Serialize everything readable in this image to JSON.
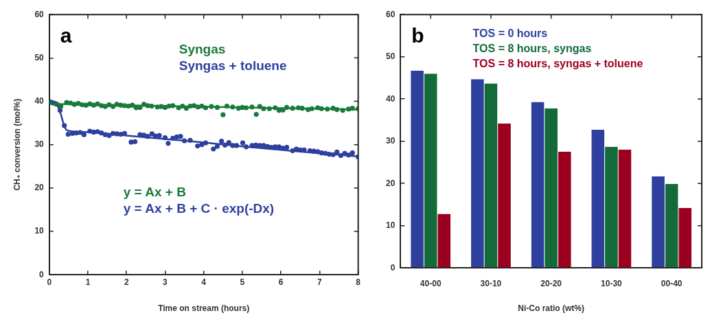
{
  "chart_data": [
    {
      "type": "scatter",
      "title": "a",
      "xlabel": "Time on stream (hours)",
      "ylabel": "CH₄ conversion (mol%)",
      "xlim": [
        0,
        8
      ],
      "xticks": [
        0,
        1,
        2,
        3,
        4,
        5,
        6,
        7,
        8
      ],
      "ylim": [
        0,
        60
      ],
      "yticks": [
        0,
        10,
        20,
        30,
        40,
        50,
        60
      ],
      "grid": false,
      "legend": "top",
      "marker": "circle",
      "annotations": [
        "y = Ax + B",
        "y = Ax + B + C · exp(-Dx)"
      ],
      "series": [
        {
          "name": "Syngas",
          "type": "scatter",
          "color": "#1a7a3c",
          "x": [
            0.02,
            0.1,
            0.2,
            0.3,
            0.45,
            0.55,
            0.65,
            0.75,
            0.85,
            0.95,
            1.05,
            1.15,
            1.25,
            1.35,
            1.45,
            1.55,
            1.65,
            1.75,
            1.85,
            1.95,
            2.05,
            2.15,
            2.25,
            2.35,
            2.45,
            2.55,
            2.65,
            2.8,
            2.9,
            3.0,
            3.1,
            3.2,
            3.35,
            3.45,
            3.55,
            3.65,
            3.75,
            3.85,
            3.95,
            4.05,
            4.2,
            4.35,
            4.5,
            4.6,
            4.75,
            4.9,
            5.0,
            5.1,
            5.25,
            5.36,
            5.45,
            5.55,
            5.7,
            5.85,
            5.95,
            6.05,
            6.15,
            6.3,
            6.45,
            6.55,
            6.7,
            6.8,
            6.95,
            7.05,
            7.2,
            7.35,
            7.45,
            7.6,
            7.75,
            7.85,
            8.0
          ],
          "values": [
            39.8,
            39.6,
            39.3,
            38.8,
            39.7,
            39.6,
            39.3,
            39.5,
            39.2,
            39.1,
            39.4,
            39.1,
            39.4,
            39.0,
            38.8,
            39.2,
            38.8,
            39.3,
            39.1,
            39.0,
            38.9,
            39.1,
            38.5,
            38.6,
            39.3,
            39.0,
            38.9,
            38.7,
            38.8,
            38.6,
            38.9,
            39.0,
            38.5,
            38.9,
            38.4,
            38.9,
            39.0,
            38.7,
            38.9,
            38.5,
            38.8,
            38.6,
            36.9,
            38.9,
            38.7,
            38.4,
            38.6,
            38.5,
            38.7,
            37.0,
            38.8,
            38.3,
            38.3,
            38.5,
            37.9,
            38.0,
            38.6,
            38.4,
            38.5,
            38.4,
            38.1,
            38.3,
            38.5,
            38.3,
            38.2,
            38.4,
            38.1,
            37.9,
            38.2,
            38.4,
            38.3
          ]
        },
        {
          "type": "line",
          "color": "#1a7a3c",
          "marker": "none",
          "x": [
            0,
            8
          ],
          "values": [
            39.4,
            38.1
          ]
        },
        {
          "name": "Syngas + toluene",
          "type": "scatter",
          "color": "#2e3f9e",
          "x": [
            0.02,
            0.08,
            0.15,
            0.28,
            0.39,
            0.49,
            0.6,
            0.7,
            0.8,
            0.9,
            1.05,
            1.15,
            1.25,
            1.35,
            1.45,
            1.55,
            1.65,
            1.75,
            1.85,
            1.95,
            2.12,
            2.22,
            2.35,
            2.45,
            2.55,
            2.66,
            2.75,
            2.85,
            3.0,
            3.08,
            3.2,
            3.3,
            3.4,
            3.5,
            3.65,
            3.84,
            3.95,
            4.05,
            4.25,
            4.35,
            4.46,
            4.55,
            4.65,
            4.75,
            4.85,
            5.01,
            5.1,
            5.25,
            5.35,
            5.45,
            5.55,
            5.65,
            5.75,
            5.85,
            5.95,
            6.05,
            6.15,
            6.3,
            6.4,
            6.5,
            6.6,
            6.75,
            6.85,
            6.95,
            7.05,
            7.15,
            7.25,
            7.35,
            7.45,
            7.55,
            7.65,
            7.75,
            7.85,
            8.0
          ],
          "values": [
            39.9,
            39.7,
            39.5,
            37.9,
            34.4,
            32.4,
            32.6,
            32.7,
            32.8,
            32.3,
            33.1,
            32.9,
            33.0,
            32.7,
            32.3,
            32.1,
            32.6,
            32.5,
            32.4,
            32.6,
            30.6,
            30.7,
            32.3,
            32.2,
            31.9,
            32.5,
            32.0,
            32.1,
            31.6,
            30.3,
            31.5,
            31.8,
            31.9,
            30.9,
            31.0,
            29.7,
            30.0,
            30.4,
            29.0,
            29.6,
            30.8,
            29.9,
            30.5,
            29.8,
            29.8,
            30.4,
            29.5,
            29.8,
            29.9,
            29.8,
            29.8,
            29.6,
            29.4,
            29.5,
            29.5,
            29.2,
            29.4,
            28.6,
            29.0,
            28.8,
            28.8,
            28.6,
            28.5,
            28.4,
            28.1,
            28.0,
            27.8,
            27.7,
            28.3,
            27.5,
            28.0,
            27.6,
            28.1,
            27.2
          ]
        },
        {
          "type": "line",
          "color": "#2e3f9e",
          "marker": "none",
          "x": [
            0,
            0.2,
            0.3,
            0.4,
            0.5,
            1,
            2,
            3,
            4,
            5,
            6,
            7,
            8
          ],
          "values": [
            39.9,
            39.2,
            37.0,
            34.0,
            33.2,
            32.9,
            32.1,
            31.3,
            30.5,
            29.6,
            28.8,
            28.0,
            27.3
          ]
        }
      ]
    },
    {
      "type": "bar",
      "title": "b",
      "xlabel": "Ni-Co ratio (wt%)",
      "categories": [
        "40-00",
        "30-10",
        "20-20",
        "10-30",
        "00-40"
      ],
      "ylim": [
        0,
        60
      ],
      "yticks": [
        0,
        10,
        20,
        30,
        40,
        50,
        60
      ],
      "grid": false,
      "legend": "top right",
      "series": [
        {
          "name": "TOS = 0 hours",
          "color": "#2e3f9e",
          "values": [
            46.7,
            44.7,
            39.3,
            32.7,
            21.7
          ]
        },
        {
          "name": "TOS = 8 hours, syngas",
          "color": "#146b39",
          "values": [
            46.0,
            43.7,
            37.8,
            28.7,
            19.9
          ]
        },
        {
          "name": "TOS = 8 hours, syngas + toluene",
          "color": "#9b0021",
          "values": [
            12.8,
            34.2,
            27.5,
            28.0,
            14.2
          ]
        }
      ]
    }
  ]
}
